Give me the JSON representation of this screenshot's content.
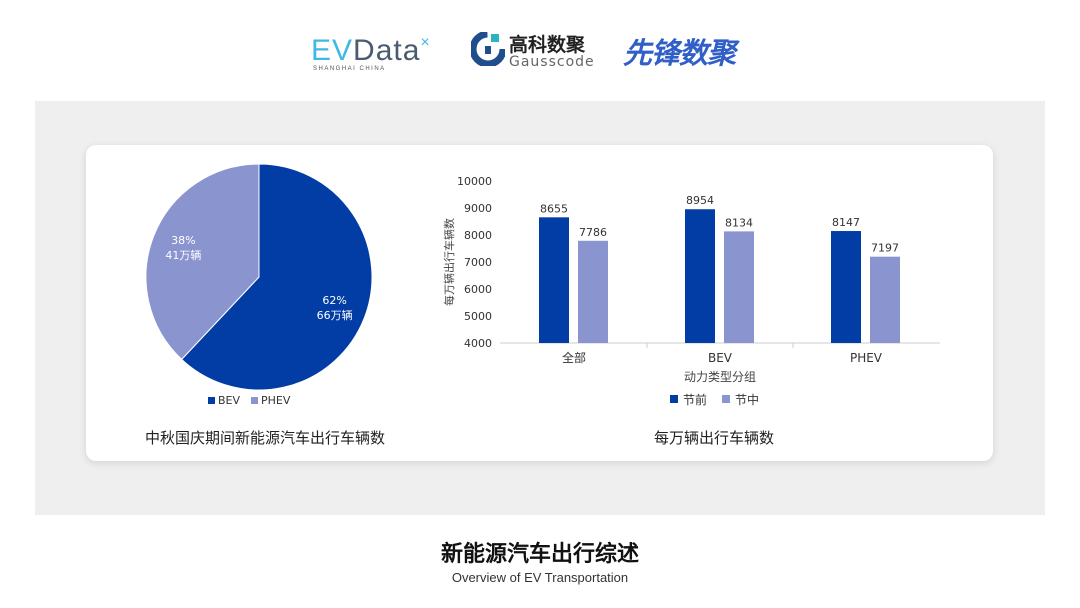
{
  "logos": {
    "evdata": {
      "ev": "EV",
      "data": "Data",
      "sub": "SHANGHAI CHINA"
    },
    "gausscode": {
      "cn": "高科数聚",
      "en": "Gausscode"
    },
    "xianfeng": "先锋数聚"
  },
  "colors": {
    "bev": "#023DA5",
    "phev": "#8A94CE",
    "before": "#023DA5",
    "during": "#8A94CE"
  },
  "chart_data": [
    {
      "type": "pie",
      "title": "中秋国庆期间新能源汽车出行车辆数",
      "slices": [
        {
          "name": "BEV",
          "percent": 62,
          "label": "66万辆"
        },
        {
          "name": "PHEV",
          "percent": 38,
          "label": "41万辆"
        }
      ],
      "legend": "bottom"
    },
    {
      "type": "bar",
      "title": "每万辆出行车辆数",
      "xlabel": "动力类型分组",
      "ylabel": "每万辆出行车辆数",
      "categories": [
        "全部",
        "BEV",
        "PHEV"
      ],
      "series": [
        {
          "name": "节前",
          "values": [
            8655,
            8954,
            8147
          ]
        },
        {
          "name": "节中",
          "values": [
            7786,
            8134,
            7197
          ]
        }
      ],
      "ylim": [
        4000,
        10000
      ],
      "yticks": [
        4000,
        5000,
        6000,
        7000,
        8000,
        9000,
        10000
      ],
      "grid": false,
      "legend": "bottom"
    }
  ],
  "footer": {
    "title": "新能源汽车出行综述",
    "subtitle": "Overview of EV Transportation"
  }
}
